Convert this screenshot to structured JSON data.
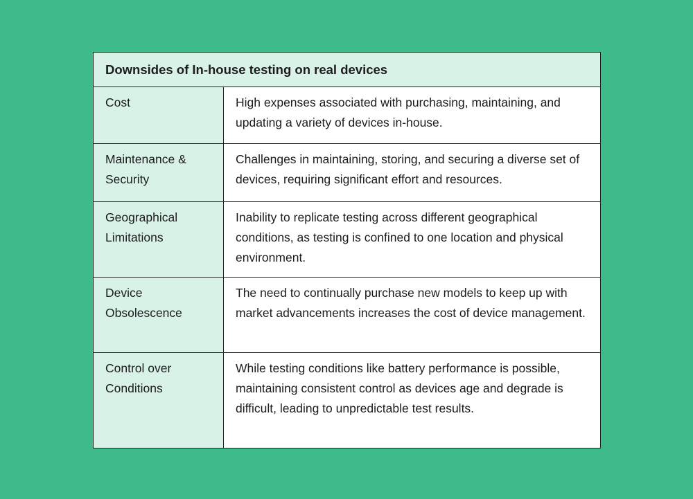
{
  "table": {
    "title": "Downsides of In-house testing on real devices",
    "rows": [
      {
        "label": "Cost",
        "description": "High expenses associated with purchasing, maintaining, and updating a variety of devices in-house."
      },
      {
        "label": "Maintenance & Security",
        "description": "Challenges in maintaining, storing, and securing a diverse set of devices, requiring significant effort and resources."
      },
      {
        "label": "Geographical Limitations",
        "description": "Inability to replicate testing across different geographical conditions, as testing is confined to one location and physical environment."
      },
      {
        "label": "Device Obsolescence",
        "description": "The need to continually purchase new models to keep up with market advancements increases the cost of device management."
      },
      {
        "label": "Control over Conditions",
        "description": "While testing conditions like battery performance is possible, maintaining consistent control as devices age and degrade is difficult, leading to unpredictable test results."
      }
    ]
  }
}
